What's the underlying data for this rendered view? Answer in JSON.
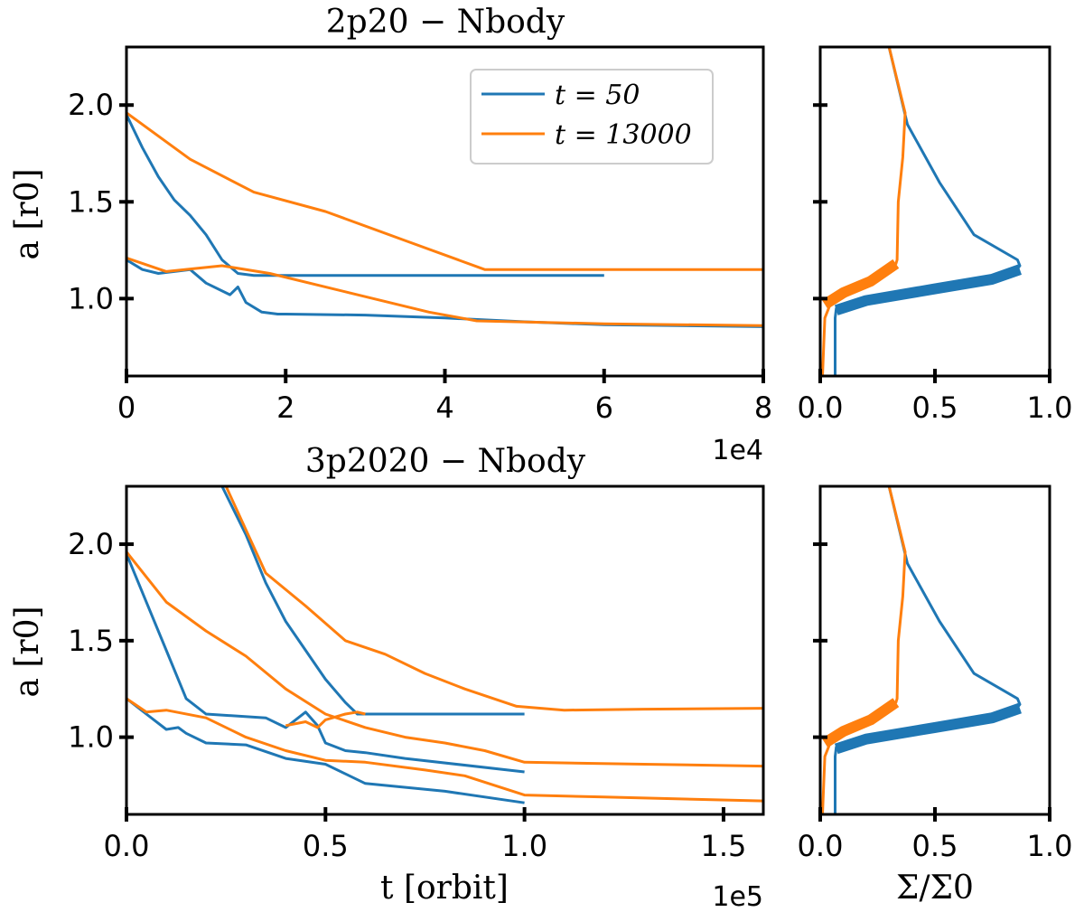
{
  "colors": {
    "blue": "#1f77b4",
    "orange": "#ff7f0e",
    "axis": "#000000"
  },
  "chart_data": [
    {
      "id": "top-left",
      "type": "line",
      "title": "2p20 − Nbody",
      "xlabel": "",
      "ylabel": "a [r0]",
      "xlim": [
        0,
        8
      ],
      "ylim": [
        0.6,
        2.3
      ],
      "xticks": [
        0,
        2,
        4,
        6,
        8
      ],
      "xtick_labels": [
        "0",
        "2",
        "4",
        "6",
        "8"
      ],
      "yticks": [
        1.0,
        1.5,
        2.0
      ],
      "ytick_labels": [
        "1.0",
        "1.5",
        "2.0"
      ],
      "x_multiplier": "1e4",
      "legend": {
        "location": "top-right",
        "entries": [
          {
            "label": "t = 50",
            "color": "blue"
          },
          {
            "label": "t = 13000",
            "color": "orange"
          }
        ]
      },
      "series": [
        {
          "name": "t = 50 outer planet",
          "color": "blue",
          "width": 3,
          "x": [
            0,
            0.2,
            0.4,
            0.6,
            0.8,
            1.0,
            1.2,
            1.4,
            1.6,
            1.8,
            2.0,
            3.0,
            4.0,
            5.0,
            6.0
          ],
          "y": [
            1.95,
            1.78,
            1.63,
            1.51,
            1.43,
            1.33,
            1.2,
            1.13,
            1.12,
            1.12,
            1.12,
            1.12,
            1.12,
            1.12,
            1.12
          ]
        },
        {
          "name": "t = 50 inner planet",
          "color": "blue",
          "width": 3,
          "x": [
            0,
            0.2,
            0.4,
            0.6,
            0.8,
            1.0,
            1.3,
            1.4,
            1.5,
            1.7,
            1.9,
            2.0,
            3.0,
            4.0,
            5.0,
            6.0,
            8.0
          ],
          "y": [
            1.2,
            1.15,
            1.13,
            1.14,
            1.15,
            1.08,
            1.02,
            1.06,
            0.98,
            0.93,
            0.92,
            0.92,
            0.915,
            0.9,
            0.88,
            0.865,
            0.855
          ]
        },
        {
          "name": "t = 13000 outer planet",
          "color": "orange",
          "width": 3,
          "x": [
            0,
            0.8,
            1.6,
            2.5,
            3.5,
            4.5,
            6.0,
            8.0
          ],
          "y": [
            1.96,
            1.72,
            1.55,
            1.45,
            1.3,
            1.15,
            1.15,
            1.15
          ]
        },
        {
          "name": "t = 13000 inner planet",
          "color": "orange",
          "width": 3,
          "x": [
            0,
            0.5,
            1.2,
            1.8,
            2.8,
            3.8,
            4.4,
            6.0,
            8.0
          ],
          "y": [
            1.21,
            1.14,
            1.17,
            1.13,
            1.03,
            0.93,
            0.885,
            0.87,
            0.86
          ]
        }
      ]
    },
    {
      "id": "top-right",
      "type": "line",
      "title": "",
      "xlabel": "",
      "ylabel": "",
      "xlim": [
        0,
        1
      ],
      "ylim": [
        0.6,
        2.3
      ],
      "xticks": [
        0.0,
        0.5,
        1.0
      ],
      "xtick_labels": [
        "0.0",
        "0.5",
        "1.0"
      ],
      "yticks": [
        1.0,
        1.5,
        2.0
      ],
      "ytick_labels": [],
      "series": [
        {
          "name": "t = 50 profile",
          "color": "blue",
          "width": 3,
          "x": [
            0.065,
            0.065,
            0.07,
            0.2,
            0.5,
            0.75,
            0.85,
            0.87,
            0.86,
            0.67,
            0.52,
            0.38,
            0.3
          ],
          "y": [
            0.6,
            0.9,
            0.95,
            0.985,
            1.05,
            1.1,
            1.14,
            1.17,
            1.2,
            1.33,
            1.6,
            1.9,
            2.3
          ]
        },
        {
          "name": "t = 50 profile band",
          "color": "blue",
          "width": 12,
          "x": [
            0.07,
            0.2,
            0.5,
            0.75,
            0.87
          ],
          "y": [
            0.94,
            0.99,
            1.05,
            1.1,
            1.15
          ]
        },
        {
          "name": "t = 13000 profile",
          "color": "orange",
          "width": 3,
          "x": [
            0.01,
            0.02,
            0.04,
            0.12,
            0.25,
            0.33,
            0.335,
            0.34,
            0.36,
            0.37,
            0.3
          ],
          "y": [
            0.6,
            0.9,
            0.96,
            1.02,
            1.09,
            1.18,
            1.2,
            1.5,
            1.73,
            1.96,
            2.3
          ]
        },
        {
          "name": "t = 13000 profile band",
          "color": "orange",
          "width": 12,
          "x": [
            0.02,
            0.1,
            0.22,
            0.33
          ],
          "y": [
            0.97,
            1.03,
            1.09,
            1.18
          ]
        }
      ]
    },
    {
      "id": "bottom-left",
      "type": "line",
      "title": "3p2020 − Nbody",
      "xlabel": "t [orbit]",
      "ylabel": "a [r0]",
      "xlim": [
        0,
        1.6
      ],
      "ylim": [
        0.6,
        2.3
      ],
      "xticks": [
        0.0,
        0.5,
        1.0,
        1.5
      ],
      "xtick_labels": [
        "0.0",
        "0.5",
        "1.0",
        "1.5"
      ],
      "yticks": [
        1.0,
        1.5,
        2.0
      ],
      "ytick_labels": [
        "1.0",
        "1.5",
        "2.0"
      ],
      "x_multiplier": "1e5",
      "series": [
        {
          "name": "t = 50 innermost planet",
          "color": "blue",
          "width": 3,
          "x": [
            0,
            0.05,
            0.1,
            0.13,
            0.15,
            0.2,
            0.3,
            0.4,
            0.5,
            0.6,
            0.8,
            1.0
          ],
          "y": [
            1.2,
            1.12,
            1.04,
            1.05,
            1.02,
            0.97,
            0.96,
            0.89,
            0.86,
            0.76,
            0.72,
            0.66
          ]
        },
        {
          "name": "t = 50 middle planet",
          "color": "blue",
          "width": 3,
          "x": [
            0,
            0.05,
            0.1,
            0.15,
            0.2,
            0.35,
            0.4,
            0.45,
            0.48,
            0.5,
            0.55,
            0.6,
            0.7,
            1.0
          ],
          "y": [
            1.95,
            1.7,
            1.45,
            1.2,
            1.12,
            1.1,
            1.05,
            1.13,
            1.06,
            0.97,
            0.93,
            0.92,
            0.89,
            0.82
          ]
        },
        {
          "name": "t = 50 outer planet",
          "color": "blue",
          "width": 3,
          "x": [
            0.24,
            0.3,
            0.35,
            0.4,
            0.45,
            0.5,
            0.55,
            0.58,
            0.6,
            0.7,
            0.8,
            1.0
          ],
          "y": [
            2.3,
            2.05,
            1.8,
            1.6,
            1.45,
            1.3,
            1.18,
            1.12,
            1.12,
            1.12,
            1.12,
            1.12
          ]
        },
        {
          "name": "t = 13000 innermost planet",
          "color": "orange",
          "width": 3,
          "x": [
            0,
            0.05,
            0.1,
            0.2,
            0.3,
            0.4,
            0.5,
            0.6,
            0.75,
            0.85,
            1.0,
            1.2,
            1.6
          ],
          "y": [
            1.2,
            1.13,
            1.14,
            1.1,
            1.0,
            0.93,
            0.88,
            0.87,
            0.83,
            0.8,
            0.7,
            0.69,
            0.67
          ]
        },
        {
          "name": "t = 13000 middle planet",
          "color": "orange",
          "width": 3,
          "x": [
            0,
            0.1,
            0.2,
            0.3,
            0.4,
            0.5,
            0.6,
            0.7,
            0.8,
            0.9,
            1.0,
            1.3,
            1.6
          ],
          "y": [
            1.96,
            1.7,
            1.55,
            1.42,
            1.25,
            1.12,
            1.05,
            1.0,
            0.97,
            0.93,
            0.87,
            0.86,
            0.85
          ]
        },
        {
          "name": "t = 13000 outer planet",
          "color": "orange",
          "width": 3,
          "x": [
            0.25,
            0.35,
            0.45,
            0.55,
            0.65,
            0.75,
            0.85,
            0.98,
            1.1,
            1.3,
            1.6
          ],
          "y": [
            2.3,
            1.85,
            1.68,
            1.5,
            1.43,
            1.33,
            1.25,
            1.16,
            1.14,
            1.145,
            1.15
          ]
        },
        {
          "name": "t = 13000 third orange",
          "color": "orange",
          "width": 3,
          "x": [
            0.4,
            0.45,
            0.48,
            0.5,
            0.55,
            0.58,
            0.6
          ],
          "y": [
            1.06,
            1.08,
            1.05,
            1.09,
            1.12,
            1.13,
            1.12
          ]
        }
      ]
    },
    {
      "id": "bottom-right",
      "type": "line",
      "title": "",
      "xlabel": "Σ/Σ0",
      "ylabel": "",
      "xlim": [
        0,
        1
      ],
      "ylim": [
        0.6,
        2.3
      ],
      "xticks": [
        0.0,
        0.5,
        1.0
      ],
      "xtick_labels": [
        "0.0",
        "0.5",
        "1.0"
      ],
      "yticks": [
        1.0,
        1.5,
        2.0
      ],
      "ytick_labels": [],
      "series": [
        {
          "name": "t = 50 profile",
          "color": "blue",
          "width": 3,
          "x": [
            0.065,
            0.065,
            0.07,
            0.2,
            0.5,
            0.75,
            0.85,
            0.87,
            0.86,
            0.67,
            0.52,
            0.38,
            0.3
          ],
          "y": [
            0.6,
            0.9,
            0.95,
            0.985,
            1.05,
            1.1,
            1.14,
            1.17,
            1.2,
            1.33,
            1.6,
            1.9,
            2.3
          ]
        },
        {
          "name": "t = 50 profile band",
          "color": "blue",
          "width": 12,
          "x": [
            0.07,
            0.2,
            0.5,
            0.75,
            0.87
          ],
          "y": [
            0.94,
            0.99,
            1.05,
            1.1,
            1.15
          ]
        },
        {
          "name": "t = 13000 profile",
          "color": "orange",
          "width": 3,
          "x": [
            0.01,
            0.02,
            0.04,
            0.12,
            0.25,
            0.33,
            0.335,
            0.34,
            0.36,
            0.37,
            0.3
          ],
          "y": [
            0.6,
            0.9,
            0.96,
            1.02,
            1.09,
            1.18,
            1.2,
            1.5,
            1.73,
            1.96,
            2.3
          ]
        },
        {
          "name": "t = 13000 profile band",
          "color": "orange",
          "width": 12,
          "x": [
            0.02,
            0.1,
            0.22,
            0.33
          ],
          "y": [
            0.97,
            1.03,
            1.09,
            1.18
          ]
        }
      ]
    }
  ]
}
